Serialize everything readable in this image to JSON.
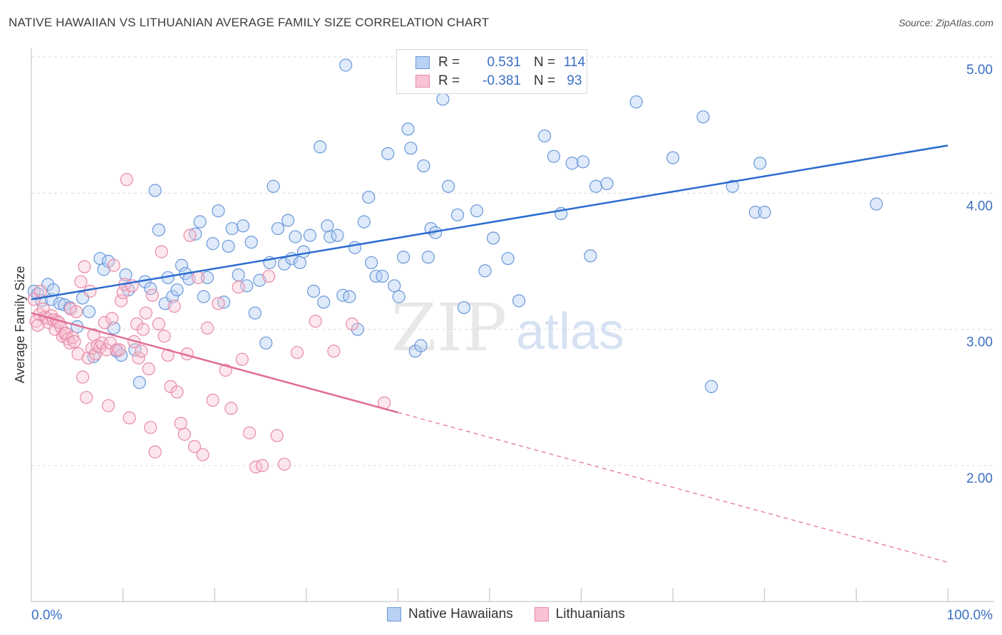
{
  "header": {
    "title": "NATIVE HAWAIIAN VS LITHUANIAN AVERAGE FAMILY SIZE CORRELATION CHART",
    "source": "Source: ZipAtlas.com"
  },
  "watermark": {
    "zip": "ZIP",
    "atlas": "atlas"
  },
  "legend": {
    "rows": [
      {
        "r_label": "R =",
        "r_value": "0.531",
        "n_label": "N =",
        "n_value": "114",
        "fill": "#b9d1f3",
        "stroke": "#6a98d8"
      },
      {
        "r_label": "R =",
        "r_value": "-0.381",
        "n_label": "N =",
        "n_value": "93",
        "fill": "#f8c3d3",
        "stroke": "#e88aa8"
      }
    ]
  },
  "bottom_legend": {
    "items": [
      {
        "label": "Native Hawaiians",
        "fill": "#b9d1f3",
        "stroke": "#6a98d8"
      },
      {
        "label": "Lithuanians",
        "fill": "#f8c3d3",
        "stroke": "#e88aa8"
      }
    ]
  },
  "chart_data": {
    "type": "scatter",
    "title": "NATIVE HAWAIIAN VS LITHUANIAN AVERAGE FAMILY SIZE CORRELATION CHART",
    "xlabel": "",
    "ylabel": "Average Family Size",
    "xlim": [
      0,
      100
    ],
    "ylim": [
      1.0,
      5.2
    ],
    "x_tick_labels": [
      "0.0%",
      "100.0%"
    ],
    "y_ticks": [
      2.0,
      3.0,
      4.0,
      5.0
    ],
    "y_tick_labels": [
      "2.00",
      "3.00",
      "4.00",
      "5.00"
    ],
    "grid": "horizontal dashed",
    "colors": {
      "blue_point": "#6a98d8",
      "blue_line": "#2a6bd0",
      "pink_point": "#e88aa8",
      "pink_line": "#e06c94"
    },
    "series": [
      {
        "name": "Native Hawaiians",
        "r": 0.531,
        "n": 114,
        "trend": {
          "x0": 0,
          "y0": 3.22,
          "x1": 100,
          "y1": 4.35
        },
        "points": [
          [
            0.3,
            3.28
          ],
          [
            0.7,
            3.26
          ],
          [
            1.1,
            3.21
          ],
          [
            1.8,
            3.33
          ],
          [
            2.2,
            3.22
          ],
          [
            2.4,
            3.29
          ],
          [
            3.1,
            3.19
          ],
          [
            3.6,
            3.18
          ],
          [
            4.2,
            3.16
          ],
          [
            5.0,
            3.02
          ],
          [
            5.6,
            3.23
          ],
          [
            6.3,
            3.13
          ],
          [
            6.8,
            2.8
          ],
          [
            7.5,
            3.52
          ],
          [
            7.9,
            3.44
          ],
          [
            8.4,
            3.5
          ],
          [
            9.0,
            3.01
          ],
          [
            9.3,
            2.84
          ],
          [
            9.8,
            2.81
          ],
          [
            10.3,
            3.4
          ],
          [
            10.6,
            3.29
          ],
          [
            11.3,
            2.85
          ],
          [
            11.8,
            2.61
          ],
          [
            12.4,
            3.35
          ],
          [
            13.0,
            3.3
          ],
          [
            13.5,
            4.02
          ],
          [
            13.9,
            3.73
          ],
          [
            14.6,
            3.19
          ],
          [
            14.9,
            3.38
          ],
          [
            15.4,
            3.24
          ],
          [
            15.9,
            3.29
          ],
          [
            16.4,
            3.47
          ],
          [
            16.8,
            3.41
          ],
          [
            17.2,
            3.37
          ],
          [
            17.9,
            3.7
          ],
          [
            18.4,
            3.79
          ],
          [
            18.8,
            3.24
          ],
          [
            19.2,
            3.38
          ],
          [
            19.8,
            3.63
          ],
          [
            20.4,
            3.87
          ],
          [
            21.0,
            3.2
          ],
          [
            21.5,
            3.61
          ],
          [
            21.9,
            3.74
          ],
          [
            22.6,
            3.4
          ],
          [
            23.1,
            3.76
          ],
          [
            23.5,
            3.32
          ],
          [
            24.0,
            3.64
          ],
          [
            24.4,
            3.12
          ],
          [
            24.9,
            3.36
          ],
          [
            25.6,
            2.9
          ],
          [
            26.0,
            3.49
          ],
          [
            26.4,
            4.05
          ],
          [
            26.9,
            3.74
          ],
          [
            27.6,
            3.48
          ],
          [
            28.0,
            3.8
          ],
          [
            28.4,
            3.52
          ],
          [
            28.8,
            3.68
          ],
          [
            29.3,
            3.49
          ],
          [
            29.7,
            3.57
          ],
          [
            30.4,
            3.69
          ],
          [
            30.8,
            3.28
          ],
          [
            31.5,
            4.34
          ],
          [
            31.9,
            3.2
          ],
          [
            32.3,
            3.76
          ],
          [
            32.6,
            3.68
          ],
          [
            33.4,
            3.69
          ],
          [
            34.0,
            3.25
          ],
          [
            34.3,
            4.94
          ],
          [
            34.7,
            3.24
          ],
          [
            35.3,
            3.6
          ],
          [
            35.6,
            3.0
          ],
          [
            36.3,
            3.79
          ],
          [
            36.8,
            3.97
          ],
          [
            37.1,
            3.49
          ],
          [
            37.6,
            3.39
          ],
          [
            38.3,
            3.39
          ],
          [
            38.9,
            4.29
          ],
          [
            39.6,
            3.32
          ],
          [
            40.1,
            3.24
          ],
          [
            40.6,
            3.53
          ],
          [
            41.1,
            4.47
          ],
          [
            41.4,
            4.33
          ],
          [
            41.9,
            2.84
          ],
          [
            42.5,
            2.88
          ],
          [
            42.8,
            4.2
          ],
          [
            43.3,
            3.53
          ],
          [
            43.6,
            3.74
          ],
          [
            44.1,
            3.71
          ],
          [
            44.9,
            4.69
          ],
          [
            45.5,
            4.05
          ],
          [
            46.5,
            3.84
          ],
          [
            47.2,
            3.16
          ],
          [
            48.6,
            3.87
          ],
          [
            49.5,
            3.43
          ],
          [
            50.4,
            3.67
          ],
          [
            52.0,
            3.52
          ],
          [
            53.2,
            3.21
          ],
          [
            56.0,
            4.42
          ],
          [
            57.0,
            4.27
          ],
          [
            57.8,
            3.85
          ],
          [
            59.0,
            4.22
          ],
          [
            60.2,
            4.23
          ],
          [
            61.0,
            3.54
          ],
          [
            61.6,
            4.05
          ],
          [
            62.8,
            4.07
          ],
          [
            66.0,
            4.67
          ],
          [
            70.0,
            4.26
          ],
          [
            73.3,
            4.56
          ],
          [
            74.2,
            2.58
          ],
          [
            76.5,
            4.05
          ],
          [
            79.0,
            3.86
          ],
          [
            79.5,
            4.22
          ],
          [
            80.0,
            3.86
          ],
          [
            92.2,
            3.92
          ]
        ]
      },
      {
        "name": "Lithuanians",
        "r": -0.381,
        "n": 93,
        "trend": {
          "x0": 0,
          "y0": 3.12,
          "x1": 40,
          "y1": 2.39,
          "x2": 100,
          "y2": 1.29
        },
        "points": [
          [
            0.3,
            3.22
          ],
          [
            0.5,
            3.06
          ],
          [
            0.7,
            3.03
          ],
          [
            0.9,
            3.11
          ],
          [
            1.0,
            3.28
          ],
          [
            1.3,
            3.15
          ],
          [
            1.5,
            3.09
          ],
          [
            1.7,
            3.08
          ],
          [
            1.9,
            3.05
          ],
          [
            2.2,
            3.1
          ],
          [
            2.4,
            3.07
          ],
          [
            2.6,
            3.0
          ],
          [
            2.8,
            3.06
          ],
          [
            3.0,
            3.05
          ],
          [
            3.2,
            3.02
          ],
          [
            3.4,
            2.95
          ],
          [
            3.6,
            2.97
          ],
          [
            3.8,
            2.97
          ],
          [
            4.0,
            2.93
          ],
          [
            4.2,
            2.9
          ],
          [
            4.3,
            3.15
          ],
          [
            4.5,
            2.94
          ],
          [
            4.7,
            2.91
          ],
          [
            4.9,
            3.13
          ],
          [
            5.1,
            2.82
          ],
          [
            5.4,
            3.35
          ],
          [
            5.6,
            2.65
          ],
          [
            5.8,
            3.46
          ],
          [
            6.0,
            2.5
          ],
          [
            6.2,
            2.79
          ],
          [
            6.4,
            3.28
          ],
          [
            6.6,
            2.86
          ],
          [
            6.8,
            2.96
          ],
          [
            7.0,
            2.82
          ],
          [
            7.2,
            2.88
          ],
          [
            7.5,
            2.87
          ],
          [
            7.7,
            2.9
          ],
          [
            8.0,
            3.05
          ],
          [
            8.2,
            2.85
          ],
          [
            8.4,
            2.44
          ],
          [
            8.6,
            2.9
          ],
          [
            8.8,
            3.08
          ],
          [
            9.0,
            3.47
          ],
          [
            9.3,
            2.85
          ],
          [
            9.6,
            2.85
          ],
          [
            9.8,
            3.21
          ],
          [
            10.0,
            3.27
          ],
          [
            10.2,
            3.33
          ],
          [
            10.4,
            4.1
          ],
          [
            10.7,
            2.35
          ],
          [
            11.0,
            3.32
          ],
          [
            11.2,
            2.91
          ],
          [
            11.5,
            3.04
          ],
          [
            11.7,
            2.79
          ],
          [
            12.0,
            2.84
          ],
          [
            12.2,
            3.0
          ],
          [
            12.5,
            3.12
          ],
          [
            12.8,
            2.71
          ],
          [
            13.0,
            2.28
          ],
          [
            13.2,
            3.25
          ],
          [
            13.5,
            2.1
          ],
          [
            13.9,
            3.04
          ],
          [
            14.2,
            3.57
          ],
          [
            14.5,
            2.95
          ],
          [
            14.9,
            2.81
          ],
          [
            15.2,
            2.58
          ],
          [
            15.6,
            3.17
          ],
          [
            15.9,
            2.54
          ],
          [
            16.3,
            2.31
          ],
          [
            16.7,
            2.23
          ],
          [
            17.0,
            2.82
          ],
          [
            17.3,
            3.69
          ],
          [
            17.8,
            2.14
          ],
          [
            18.2,
            3.38
          ],
          [
            18.7,
            2.08
          ],
          [
            19.2,
            3.01
          ],
          [
            19.8,
            2.48
          ],
          [
            20.4,
            3.19
          ],
          [
            21.2,
            2.7
          ],
          [
            21.8,
            2.42
          ],
          [
            22.6,
            3.31
          ],
          [
            23.0,
            2.78
          ],
          [
            23.8,
            2.24
          ],
          [
            24.5,
            1.99
          ],
          [
            25.2,
            2.0
          ],
          [
            25.9,
            3.39
          ],
          [
            26.8,
            2.22
          ],
          [
            27.6,
            2.01
          ],
          [
            29.0,
            2.83
          ],
          [
            31.0,
            3.06
          ],
          [
            33.0,
            2.84
          ],
          [
            35.0,
            3.04
          ],
          [
            38.5,
            2.46
          ]
        ]
      }
    ]
  }
}
